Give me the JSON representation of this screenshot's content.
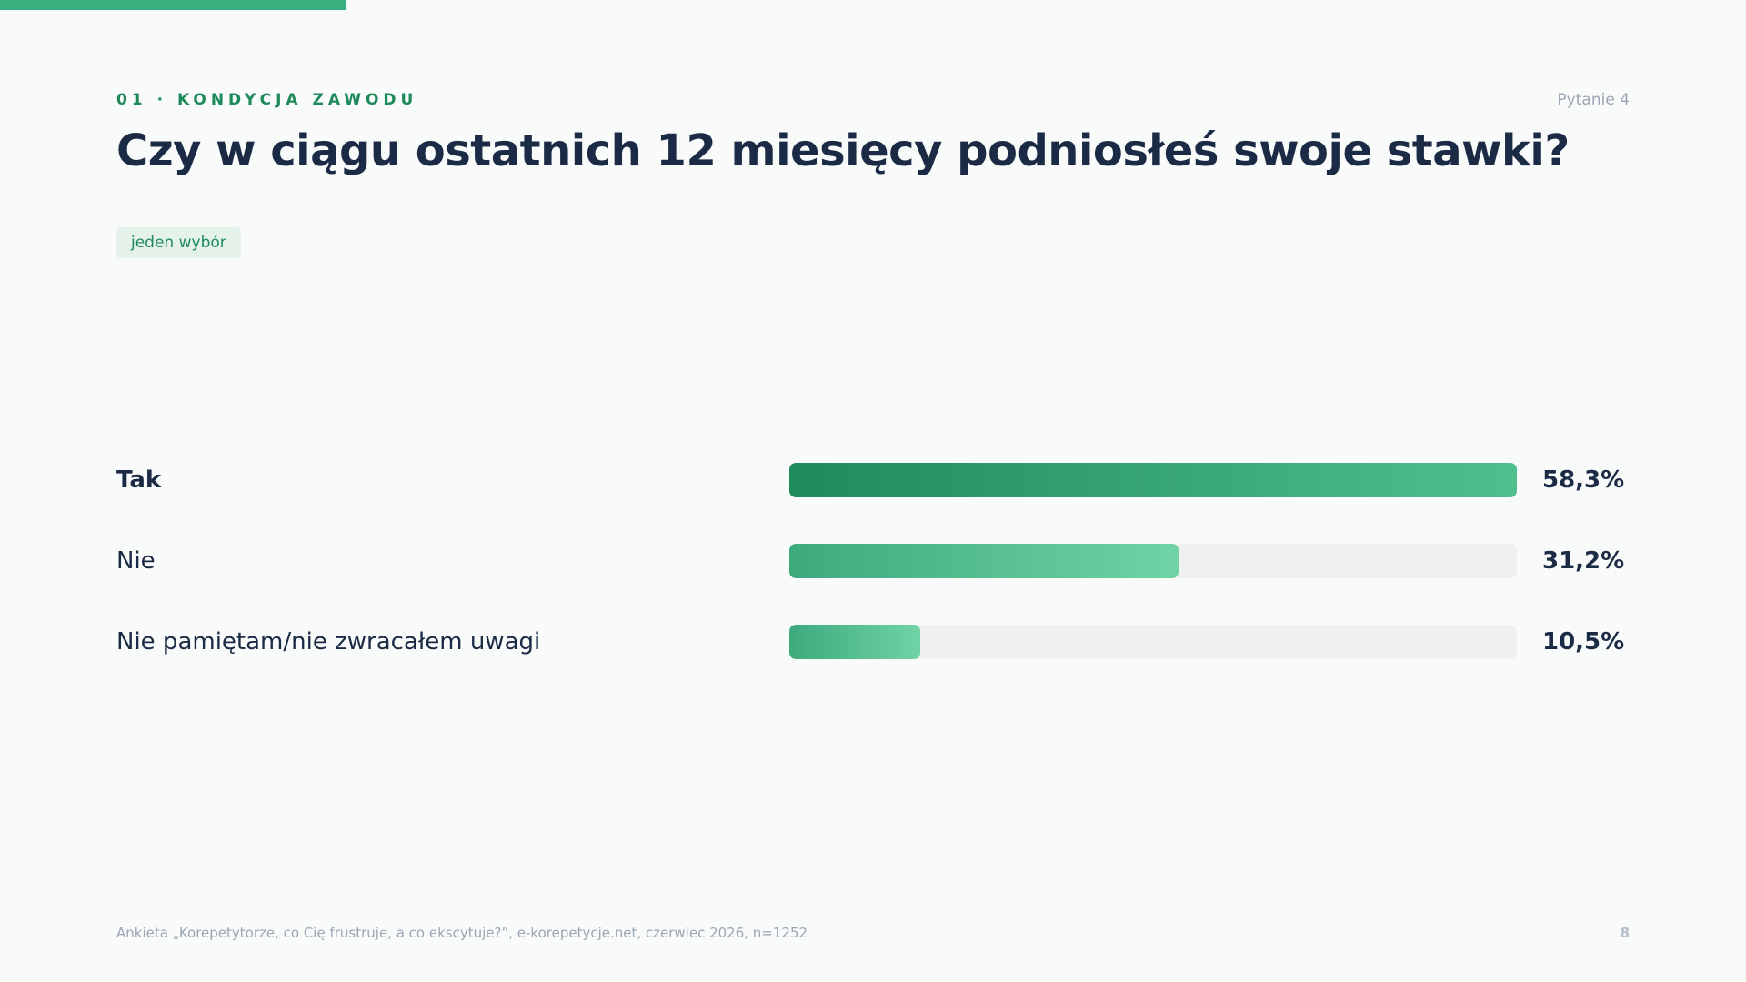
{
  "header": {
    "section_label": "01 · KONDYCJA ZAWODU",
    "question_number": "Pytanie 4",
    "title": "Czy w ciągu ostatnich 12 miesięcy podniosłeś swoje stawki?",
    "choice_badge": "jeden wybór"
  },
  "chart_data": {
    "type": "bar",
    "orientation": "horizontal",
    "categories": [
      "Tak",
      "Nie",
      "Nie pamiętam/nie zwracałem uwagi"
    ],
    "values": [
      58.3,
      31.2,
      10.5
    ],
    "value_labels": [
      "58,3%",
      "31,2%",
      "10,5%"
    ],
    "unit": "%",
    "grid": false,
    "legend": "none"
  },
  "footer": {
    "source": "Ankieta „Korepetytorze, co Cię frustruje, a co ekscytuje?”, e-korepetycje.net, czerwiec 2026, n=1252",
    "page_number": "8"
  },
  "colors": {
    "accent": "#3aaf7f",
    "accent_dark": "#1e8a5a",
    "text": "#1b2a45",
    "muted": "#9aa6b4",
    "track": "#eef1ef"
  }
}
